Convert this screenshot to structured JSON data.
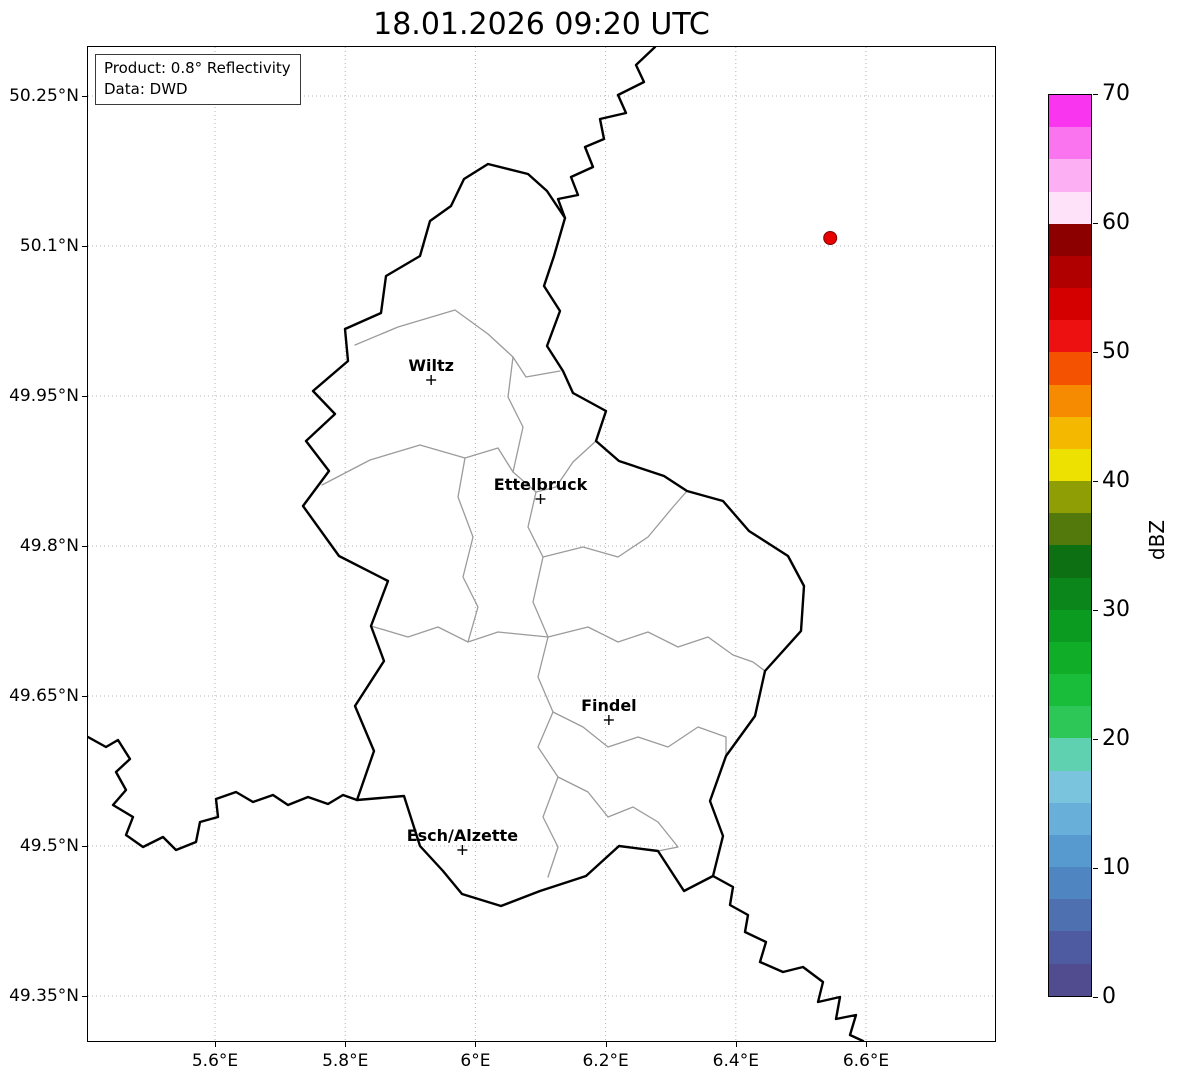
{
  "title": "18.01.2026 09:20 UTC",
  "info_box": {
    "product": "Product: 0.8° Reflectivity",
    "source": "Data: DWD"
  },
  "axes": {
    "x_ticks": [
      {
        "label": "5.6°E",
        "lon": 5.6
      },
      {
        "label": "5.8°E",
        "lon": 5.8
      },
      {
        "label": "6°E",
        "lon": 6.0
      },
      {
        "label": "6.2°E",
        "lon": 6.2
      },
      {
        "label": "6.4°E",
        "lon": 6.4
      },
      {
        "label": "6.6°E",
        "lon": 6.6
      }
    ],
    "y_ticks": [
      {
        "label": "50.25°N",
        "lat": 50.25
      },
      {
        "label": "50.1°N",
        "lat": 50.1
      },
      {
        "label": "49.95°N",
        "lat": 49.95
      },
      {
        "label": "49.8°N",
        "lat": 49.8
      },
      {
        "label": "49.65°N",
        "lat": 49.65
      },
      {
        "label": "49.5°N",
        "lat": 49.5
      },
      {
        "label": "49.35°N",
        "lat": 49.35
      }
    ]
  },
  "map": {
    "region": "Luxembourg",
    "cities": [
      {
        "name": "Wiltz",
        "lon": 5.932,
        "lat": 49.966
      },
      {
        "name": "Ettelbruck",
        "lon": 6.1,
        "lat": 49.847
      },
      {
        "name": "Findel",
        "lon": 6.205,
        "lat": 49.626
      },
      {
        "name": "Esch/Alzette",
        "lon": 5.98,
        "lat": 49.496
      }
    ],
    "radar_site": {
      "lon": 6.545,
      "lat": 50.108,
      "color": "#e60000"
    }
  },
  "colorbar": {
    "unit": "dBZ",
    "min": 0,
    "max": 70,
    "ticks": [
      70,
      60,
      50,
      40,
      30,
      20,
      10,
      0
    ],
    "segment_dbz": 2.5,
    "colors_top_to_bottom": [
      "#f935f0",
      "#fb74ef",
      "#fcaff2",
      "#fee2fa",
      "#8c0000",
      "#b10000",
      "#d40000",
      "#ee1111",
      "#f45200",
      "#f68a00",
      "#f5b800",
      "#ece100",
      "#909e06",
      "#53790c",
      "#0d7113",
      "#0a861b",
      "#0b9b21",
      "#10ad28",
      "#1abd3a",
      "#2cc756",
      "#5fd0b0",
      "#7ac4de",
      "#68b0da",
      "#579ad0",
      "#4f85c1",
      "#4e70b1",
      "#4f5ba0",
      "#514b90"
    ]
  }
}
